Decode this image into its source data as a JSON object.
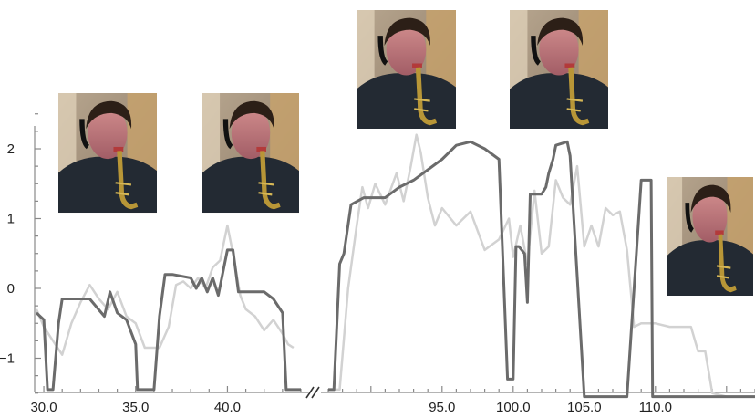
{
  "chart_data": {
    "type": "line",
    "title": "",
    "xlabel": "",
    "ylabel": "",
    "axis_break": [
      44,
      87
    ],
    "xlim_segments": [
      [
        29.6,
        44
      ],
      [
        87,
        117
      ]
    ],
    "ylim": [
      -1.5,
      2.5
    ],
    "xticks": [
      {
        "value": 30,
        "label": "30.0"
      },
      {
        "value": 35,
        "label": "35.0"
      },
      {
        "value": 40,
        "label": "40.0"
      },
      {
        "value": 95,
        "label": "95.0"
      },
      {
        "value": 100,
        "label": "100.0"
      },
      {
        "value": 105,
        "label": "105.0"
      },
      {
        "value": 110,
        "label": "110.0"
      }
    ],
    "yticks": [
      {
        "value": -1,
        "label": "−1"
      },
      {
        "value": 0,
        "label": "0"
      },
      {
        "value": 1,
        "label": "1"
      },
      {
        "value": 2,
        "label": "2"
      }
    ],
    "series": [
      {
        "color": "#6b6b6b",
        "x": [
          29.6,
          30,
          30.2,
          30.5,
          30.8,
          31,
          31.5,
          32.5,
          33.3,
          33.6,
          34,
          34.5,
          35,
          35.1,
          35.5,
          36,
          36.3,
          36.6,
          37,
          38,
          38.3,
          38.6,
          38.9,
          39.2,
          39.5,
          40,
          40.3,
          40.6,
          41,
          42,
          42.5,
          43,
          43.2,
          43.5,
          43.8,
          44,
          87,
          87.4,
          87.8,
          88.1,
          88.6,
          89.5,
          91,
          92,
          93,
          94,
          95,
          96,
          97,
          98,
          99,
          99.6,
          100,
          100.2,
          100.4,
          100.8,
          101,
          101.2,
          102,
          102.3,
          102.5,
          102.8,
          103,
          103.8,
          104,
          105,
          105.5,
          105.8,
          106,
          106.3,
          106.5,
          107,
          108,
          109,
          109.7,
          109.8,
          110,
          110.5,
          110.8,
          111,
          112,
          113,
          114,
          115,
          116,
          117
        ],
        "y": [
          -0.35,
          -0.45,
          -1.45,
          -1.45,
          -0.5,
          -0.15,
          -0.15,
          -0.15,
          -0.4,
          -0.05,
          -0.35,
          -0.45,
          -0.8,
          -1.45,
          -1.45,
          -1.45,
          -0.4,
          0.2,
          0.2,
          0.15,
          0.0,
          0.15,
          -0.05,
          0.15,
          -0.1,
          0.55,
          0.55,
          -0.05,
          -0.05,
          -0.05,
          -0.15,
          -0.35,
          -1.45,
          -1.45,
          -1.45,
          -1.45,
          -1.45,
          -1.45,
          0.35,
          0.5,
          1.2,
          1.3,
          1.3,
          1.45,
          1.55,
          1.7,
          1.85,
          2.05,
          2.1,
          2.0,
          1.85,
          -1.3,
          -1.3,
          0.6,
          0.6,
          0.5,
          -0.2,
          1.35,
          1.35,
          1.45,
          1.65,
          1.85,
          2.05,
          2.1,
          1.9,
          -1.55,
          -1.55,
          -1.55,
          -1.55,
          -1.55,
          -1.55,
          -1.55,
          -1.55,
          1.55,
          1.55,
          -1.55,
          -1.55,
          -1.55,
          -1.55,
          -1.55,
          -1.55,
          -1.55,
          -1.55,
          -1.55,
          -1.55,
          -1.55
        ]
      },
      {
        "color": "#d2d2d2",
        "x": [
          29.6,
          30,
          30.5,
          31,
          31.5,
          32,
          32.5,
          33,
          33.5,
          34,
          34.5,
          35,
          35.5,
          36,
          36.3,
          36.8,
          37.2,
          37.6,
          38,
          38.4,
          38.8,
          39.2,
          39.6,
          40,
          40.3,
          40.7,
          41,
          41.5,
          42,
          42.5,
          43,
          43.3,
          43.6,
          87,
          87.8,
          88.4,
          89,
          89.4,
          89.8,
          90.3,
          91,
          91.8,
          92.3,
          92.8,
          93.2,
          93.5,
          94,
          94.5,
          95,
          96,
          97,
          98,
          99,
          99.7,
          100,
          100.5,
          101,
          101.5,
          102,
          102.5,
          103,
          103.5,
          104,
          104.5,
          105,
          105.5,
          106,
          106.5,
          107,
          107.5,
          108,
          108.5,
          109,
          110,
          111,
          112,
          112.5,
          113,
          113.5,
          114,
          115,
          116,
          117
        ],
        "y": [
          -0.3,
          -0.55,
          -0.75,
          -0.95,
          -0.5,
          -0.2,
          0.05,
          -0.15,
          -0.3,
          -0.05,
          -0.4,
          -0.5,
          -0.85,
          -0.85,
          -0.85,
          -0.55,
          0.05,
          0.1,
          0.0,
          0.15,
          0.0,
          0.3,
          0.4,
          0.9,
          0.5,
          -0.1,
          -0.3,
          -0.4,
          -0.6,
          -0.45,
          -0.65,
          -0.8,
          -0.85,
          -1.45,
          -1.45,
          0.0,
          0.9,
          1.45,
          1.15,
          1.5,
          1.2,
          1.65,
          1.25,
          1.75,
          2.2,
          1.95,
          1.3,
          0.9,
          1.15,
          0.9,
          1.1,
          0.55,
          0.7,
          1.0,
          0.45,
          0.9,
          0.35,
          1.4,
          0.5,
          0.6,
          1.55,
          1.3,
          1.2,
          1.75,
          0.6,
          0.9,
          0.6,
          1.15,
          1.05,
          1.1,
          0.55,
          -0.55,
          -0.5,
          -0.5,
          -0.55,
          -0.55,
          -0.55,
          -0.9,
          -0.9,
          -1.5,
          -1.55,
          -1.55,
          -1.55
        ]
      }
    ]
  },
  "photos": [
    {
      "name": "photo-1",
      "caption_icon": "saxophonist-photo"
    },
    {
      "name": "photo-2",
      "caption_icon": "saxophonist-photo"
    },
    {
      "name": "photo-3",
      "caption_icon": "saxophonist-photo"
    },
    {
      "name": "photo-4",
      "caption_icon": "saxophonist-photo"
    },
    {
      "name": "photo-5",
      "caption_icon": "saxophonist-photo"
    }
  ]
}
